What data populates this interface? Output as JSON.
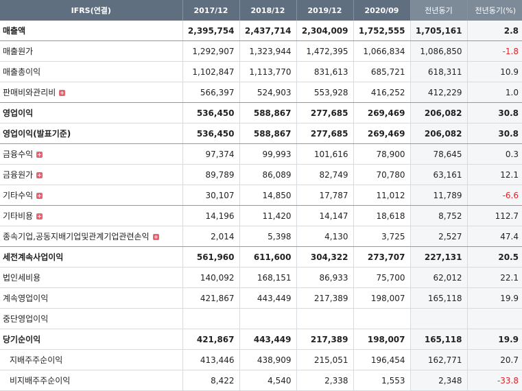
{
  "header": {
    "label": "IFRS(연결)",
    "columns": [
      "2017/12",
      "2018/12",
      "2019/12",
      "2020/09",
      "전년동기",
      "전년동기(%)"
    ]
  },
  "rows": [
    {
      "label": "매출액",
      "values": [
        "2,395,754",
        "2,437,714",
        "2,304,009",
        "1,752,555",
        "1,705,161",
        "2.8"
      ]
    },
    {
      "label": "매출원가",
      "values": [
        "1,292,907",
        "1,323,944",
        "1,472,395",
        "1,066,834",
        "1,086,850",
        "-1.8"
      ]
    },
    {
      "label": "매출총이익",
      "values": [
        "1,102,847",
        "1,113,770",
        "831,613",
        "685,721",
        "618,311",
        "10.9"
      ]
    },
    {
      "label": "판매비와관리비",
      "values": [
        "566,397",
        "524,903",
        "553,928",
        "416,252",
        "412,229",
        "1.0"
      ]
    },
    {
      "label": "영업이익",
      "values": [
        "536,450",
        "588,867",
        "277,685",
        "269,469",
        "206,082",
        "30.8"
      ]
    },
    {
      "label": "영업이익(발표기준)",
      "values": [
        "536,450",
        "588,867",
        "277,685",
        "269,469",
        "206,082",
        "30.8"
      ]
    },
    {
      "label": "금융수익",
      "values": [
        "97,374",
        "99,993",
        "101,616",
        "78,900",
        "78,645",
        "0.3"
      ]
    },
    {
      "label": "금융원가",
      "values": [
        "89,789",
        "86,089",
        "82,749",
        "70,780",
        "63,161",
        "12.1"
      ]
    },
    {
      "label": "기타수익",
      "values": [
        "30,107",
        "14,850",
        "17,787",
        "11,012",
        "11,789",
        "-6.6"
      ]
    },
    {
      "label": "기타비용",
      "values": [
        "14,196",
        "11,420",
        "14,147",
        "18,618",
        "8,752",
        "112.7"
      ]
    },
    {
      "label": "종속기업,공동지배기업및관계기업관련손익",
      "values": [
        "2,014",
        "5,398",
        "4,130",
        "3,725",
        "2,527",
        "47.4"
      ]
    },
    {
      "label": "세전계속사업이익",
      "values": [
        "561,960",
        "611,600",
        "304,322",
        "273,707",
        "227,131",
        "20.5"
      ]
    },
    {
      "label": "법인세비용",
      "values": [
        "140,092",
        "168,151",
        "86,933",
        "75,700",
        "62,012",
        "22.1"
      ]
    },
    {
      "label": "계속영업이익",
      "values": [
        "421,867",
        "443,449",
        "217,389",
        "198,007",
        "165,118",
        "19.9"
      ]
    },
    {
      "label": "중단영업이익",
      "values": [
        "",
        "",
        "",
        "",
        "",
        ""
      ]
    },
    {
      "label": "당기순이익",
      "values": [
        "421,867",
        "443,449",
        "217,389",
        "198,007",
        "165,118",
        "19.9"
      ]
    },
    {
      "label": "지배주주순이익",
      "values": [
        "413,446",
        "438,909",
        "215,051",
        "196,454",
        "162,771",
        "20.7"
      ]
    },
    {
      "label": "비지배주주순이익",
      "values": [
        "8,422",
        "4,540",
        "2,338",
        "1,553",
        "2,348",
        "-33.8"
      ]
    }
  ]
}
